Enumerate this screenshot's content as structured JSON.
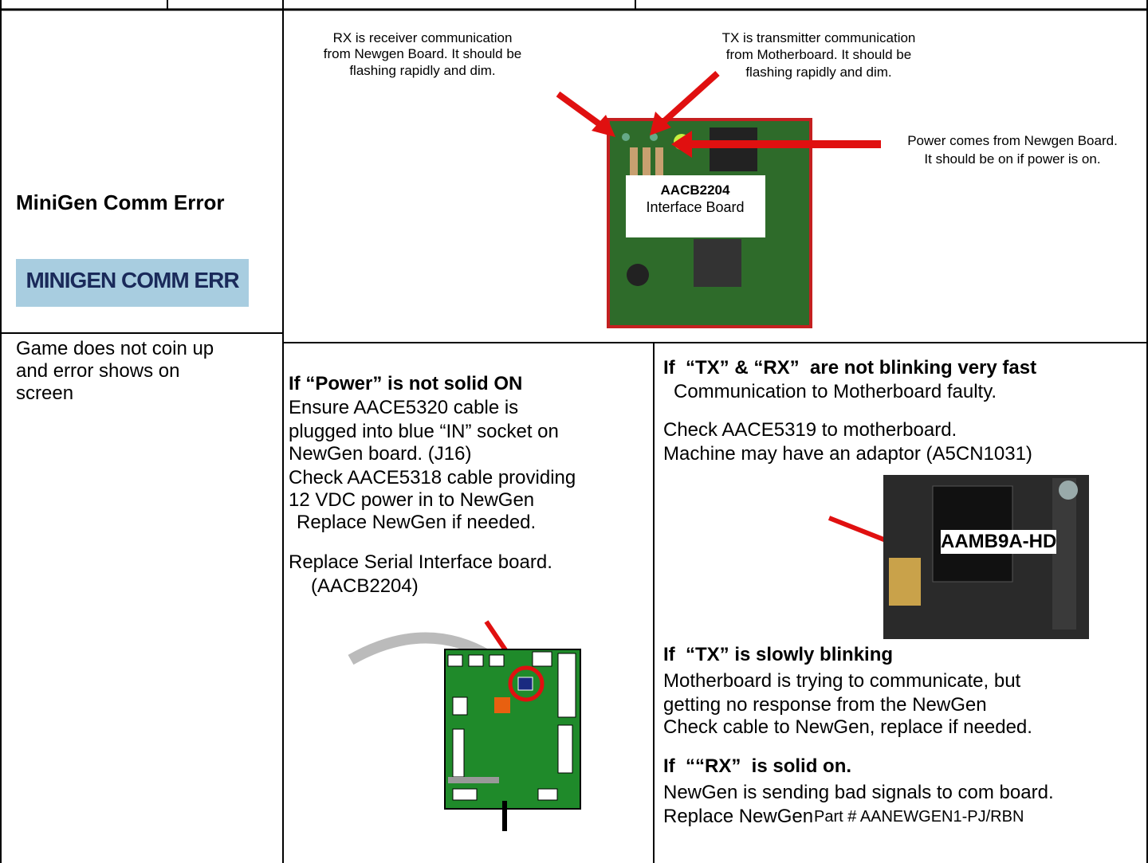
{
  "symptom": {
    "title": "MiniGen Comm Error",
    "screen_banner": "MINIGEN COMM ERR",
    "description": [
      "Game does not coin up",
      "and error shows on",
      "screen"
    ]
  },
  "diagram": {
    "rx_note": [
      "RX is receiver communication",
      "from Newgen Board. It should be",
      "flashing rapidly and dim."
    ],
    "tx_note": [
      "TX is transmitter communication",
      "from Motherboard. It should be",
      "flashing rapidly and dim."
    ],
    "power_note": [
      "Power comes from Newgen Board.",
      "It should be on if power is on."
    ],
    "board_part": "AACB2204",
    "board_name": "Interface Board"
  },
  "power_fix": {
    "heading": "If “Power” is not solid ON",
    "steps": [
      "Ensure AACE5320 cable is",
      "plugged into blue “IN” socket on",
      "NewGen board. (J16)",
      "Check AACE5318 cable providing",
      "12 VDC power in to NewGen",
      "Replace NewGen if needed."
    ],
    "replace": [
      "Replace Serial Interface board.",
      "(AACB2204)"
    ]
  },
  "comm_fix": {
    "heading": "If  “TX” & “RX”  are not blinking very fast",
    "cause": "Communication to Motherboard faulty.",
    "checks": [
      "Check AACE5319 to motherboard.",
      "Machine may have an adaptor (A5CN1031)"
    ],
    "motherboard_label": "AAMB9A-HD",
    "slow_heading": "If  “TX” is slowly blinking",
    "slow_lines": [
      "Motherboard is trying to communicate, but",
      "getting no response from the NewGen",
      "Check cable to NewGen, replace if needed."
    ],
    "solid_heading": "If  ““RX”  is solid on.",
    "solid_lines": [
      "NewGen is sending bad signals to com board.",
      "Replace NewGen"
    ],
    "part_number": "Part # AANEWGEN1-PJ/RBN"
  }
}
